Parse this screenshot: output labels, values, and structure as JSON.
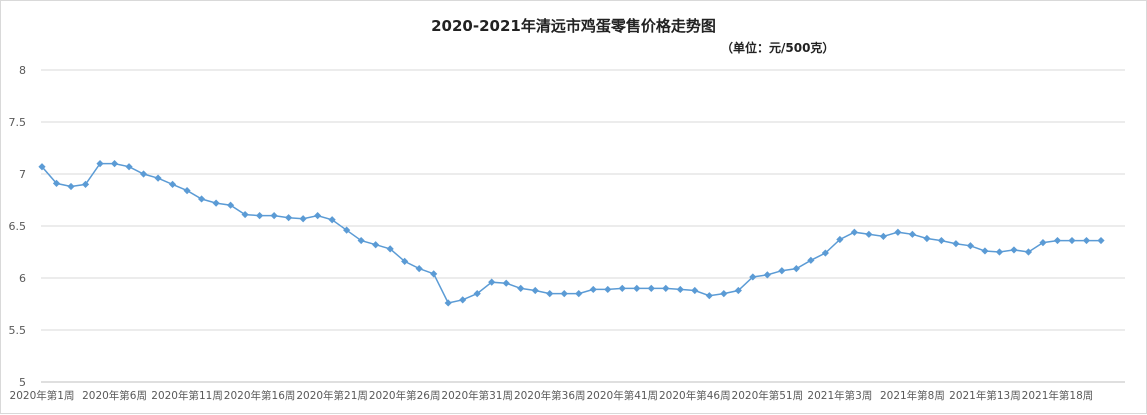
{
  "chart_data": {
    "type": "line",
    "title": "2020-2021年清远市鸡蛋零售价格走势图",
    "subtitle": "（单位：元/500克）",
    "ylim": [
      5,
      8
    ],
    "yticks": [
      "5",
      "5.5",
      "6",
      "6.5",
      "7",
      "7.5",
      "8"
    ],
    "grid": true,
    "legend": "none",
    "tick_labels": [
      "2020年第1周",
      "2020年第6周",
      "2020年第11周",
      "2020年第16周",
      "2020年第21周",
      "2020年第26周",
      "2020年第31周",
      "2020年第36周",
      "2020年第41周",
      "2020年第46周",
      "2020年第51周",
      "2021年第3周",
      "2021年第8周",
      "2021年第13周",
      "2021年第18周"
    ],
    "series": [
      {
        "color": "#5B9BD5",
        "values": [
          7.07,
          6.91,
          6.88,
          6.9,
          7.1,
          7.1,
          7.07,
          7.0,
          6.96,
          6.9,
          6.84,
          6.76,
          6.72,
          6.7,
          6.61,
          6.6,
          6.6,
          6.58,
          6.57,
          6.6,
          6.56,
          6.46,
          6.36,
          6.32,
          6.28,
          6.16,
          6.09,
          6.04,
          5.76,
          5.79,
          5.85,
          5.96,
          5.95,
          5.9,
          5.88,
          5.85,
          5.85,
          5.85,
          5.89,
          5.89,
          5.9,
          5.9,
          5.9,
          5.9,
          5.89,
          5.88,
          5.83,
          5.85,
          5.88,
          6.01,
          6.03,
          6.07,
          6.09,
          6.17,
          6.24,
          6.37,
          6.44,
          6.42,
          6.4,
          6.44,
          6.42,
          6.38,
          6.36,
          6.33,
          6.31,
          6.26,
          6.25,
          6.27,
          6.25,
          6.34,
          6.36,
          6.36,
          6.36,
          6.36
        ]
      }
    ]
  }
}
